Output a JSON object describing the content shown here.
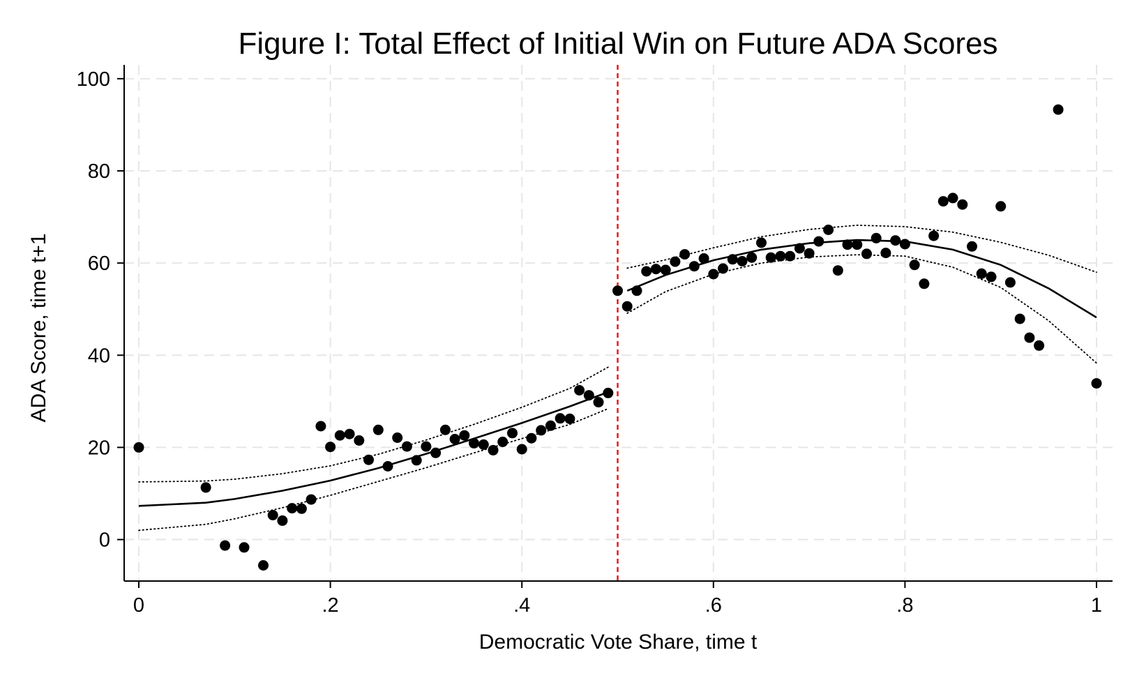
{
  "chart_data": {
    "type": "scatter",
    "title": "Figure I: Total Effect of Initial Win on Future ADA Scores",
    "xlabel": "Democratic Vote Share, time t",
    "ylabel": "ADA Score, time t+1",
    "xlim": [
      0,
      1
    ],
    "ylim": [
      -9,
      103
    ],
    "x_ticks": [
      0,
      0.2,
      0.4,
      0.6,
      0.8,
      1
    ],
    "x_tick_labels": [
      "0",
      ".2",
      ".4",
      ".6",
      ".8",
      "1"
    ],
    "y_ticks": [
      0,
      20,
      40,
      60,
      80,
      100
    ],
    "y_tick_labels": [
      "0",
      "20",
      "40",
      "60",
      "80",
      "100"
    ],
    "grid": true,
    "threshold": 0.5,
    "points": [
      [
        0.0,
        20.0
      ],
      [
        0.07,
        11.3
      ],
      [
        0.09,
        -1.3
      ],
      [
        0.11,
        -1.7
      ],
      [
        0.13,
        -5.6
      ],
      [
        0.14,
        5.3
      ],
      [
        0.15,
        4.1
      ],
      [
        0.16,
        6.8
      ],
      [
        0.17,
        6.7
      ],
      [
        0.18,
        8.7
      ],
      [
        0.19,
        24.6
      ],
      [
        0.2,
        20.1
      ],
      [
        0.21,
        22.6
      ],
      [
        0.22,
        22.9
      ],
      [
        0.23,
        21.5
      ],
      [
        0.24,
        17.3
      ],
      [
        0.25,
        23.8
      ],
      [
        0.26,
        15.9
      ],
      [
        0.27,
        22.1
      ],
      [
        0.28,
        20.2
      ],
      [
        0.29,
        17.2
      ],
      [
        0.3,
        20.2
      ],
      [
        0.31,
        18.8
      ],
      [
        0.32,
        23.8
      ],
      [
        0.33,
        21.8
      ],
      [
        0.34,
        22.6
      ],
      [
        0.35,
        20.9
      ],
      [
        0.36,
        20.6
      ],
      [
        0.37,
        19.4
      ],
      [
        0.38,
        21.2
      ],
      [
        0.39,
        23.1
      ],
      [
        0.4,
        19.6
      ],
      [
        0.41,
        22.0
      ],
      [
        0.42,
        23.7
      ],
      [
        0.43,
        24.7
      ],
      [
        0.44,
        26.3
      ],
      [
        0.45,
        26.2
      ],
      [
        0.46,
        32.4
      ],
      [
        0.47,
        31.3
      ],
      [
        0.48,
        29.8
      ],
      [
        0.49,
        31.8
      ],
      [
        0.5,
        54.0
      ],
      [
        0.51,
        50.6
      ],
      [
        0.52,
        54.0
      ],
      [
        0.53,
        58.2
      ],
      [
        0.54,
        58.7
      ],
      [
        0.55,
        58.5
      ],
      [
        0.56,
        60.3
      ],
      [
        0.57,
        61.9
      ],
      [
        0.58,
        59.3
      ],
      [
        0.59,
        61.0
      ],
      [
        0.6,
        57.6
      ],
      [
        0.61,
        58.8
      ],
      [
        0.62,
        60.8
      ],
      [
        0.63,
        60.4
      ],
      [
        0.64,
        61.2
      ],
      [
        0.65,
        64.4
      ],
      [
        0.66,
        61.2
      ],
      [
        0.67,
        61.5
      ],
      [
        0.68,
        61.5
      ],
      [
        0.69,
        63.2
      ],
      [
        0.7,
        62.1
      ],
      [
        0.71,
        64.7
      ],
      [
        0.72,
        67.2
      ],
      [
        0.73,
        58.4
      ],
      [
        0.74,
        64.0
      ],
      [
        0.75,
        64.0
      ],
      [
        0.76,
        62.0
      ],
      [
        0.77,
        65.4
      ],
      [
        0.78,
        62.2
      ],
      [
        0.79,
        64.9
      ],
      [
        0.8,
        64.1
      ],
      [
        0.81,
        59.6
      ],
      [
        0.82,
        55.5
      ],
      [
        0.83,
        65.9
      ],
      [
        0.84,
        73.4
      ],
      [
        0.85,
        74.1
      ],
      [
        0.86,
        72.7
      ],
      [
        0.87,
        63.6
      ],
      [
        0.88,
        57.7
      ],
      [
        0.89,
        57.0
      ],
      [
        0.9,
        72.3
      ],
      [
        0.91,
        55.8
      ],
      [
        0.92,
        47.9
      ],
      [
        0.93,
        43.8
      ],
      [
        0.94,
        42.1
      ],
      [
        0.96,
        93.3
      ],
      [
        1.0,
        33.9
      ]
    ],
    "fit_left": [
      [
        0.0,
        7.3
      ],
      [
        0.07,
        8.0
      ],
      [
        0.1,
        8.8
      ],
      [
        0.15,
        10.6
      ],
      [
        0.2,
        12.8
      ],
      [
        0.25,
        15.5
      ],
      [
        0.3,
        18.6
      ],
      [
        0.35,
        21.9
      ],
      [
        0.4,
        25.3
      ],
      [
        0.45,
        28.9
      ],
      [
        0.49,
        32.0
      ]
    ],
    "ci_left_upper": [
      [
        0.0,
        12.5
      ],
      [
        0.07,
        12.7
      ],
      [
        0.1,
        13.1
      ],
      [
        0.15,
        14.3
      ],
      [
        0.2,
        16.0
      ],
      [
        0.25,
        18.5
      ],
      [
        0.3,
        21.6
      ],
      [
        0.35,
        25.0
      ],
      [
        0.4,
        28.7
      ],
      [
        0.45,
        32.8
      ],
      [
        0.49,
        37.4
      ]
    ],
    "ci_left_lower": [
      [
        0.0,
        2.0
      ],
      [
        0.07,
        3.3
      ],
      [
        0.1,
        4.5
      ],
      [
        0.15,
        6.9
      ],
      [
        0.2,
        9.6
      ],
      [
        0.25,
        12.6
      ],
      [
        0.3,
        15.6
      ],
      [
        0.35,
        18.8
      ],
      [
        0.4,
        21.9
      ],
      [
        0.45,
        25.0
      ],
      [
        0.49,
        28.4
      ]
    ],
    "fit_right": [
      [
        0.51,
        54.0
      ],
      [
        0.55,
        57.4
      ],
      [
        0.6,
        60.6
      ],
      [
        0.65,
        62.9
      ],
      [
        0.7,
        64.3
      ],
      [
        0.75,
        65.0
      ],
      [
        0.8,
        64.7
      ],
      [
        0.85,
        62.9
      ],
      [
        0.9,
        59.6
      ],
      [
        0.95,
        54.5
      ],
      [
        1.0,
        48.2
      ]
    ],
    "ci_right_upper": [
      [
        0.51,
        58.9
      ],
      [
        0.55,
        60.7
      ],
      [
        0.6,
        63.3
      ],
      [
        0.65,
        65.7
      ],
      [
        0.7,
        67.3
      ],
      [
        0.75,
        68.2
      ],
      [
        0.8,
        67.9
      ],
      [
        0.85,
        66.7
      ],
      [
        0.9,
        64.5
      ],
      [
        0.95,
        61.7
      ],
      [
        1.0,
        58.0
      ]
    ],
    "ci_right_lower": [
      [
        0.51,
        49.1
      ],
      [
        0.55,
        53.8
      ],
      [
        0.6,
        57.6
      ],
      [
        0.65,
        60.0
      ],
      [
        0.7,
        61.3
      ],
      [
        0.75,
        61.8
      ],
      [
        0.8,
        61.5
      ],
      [
        0.85,
        59.1
      ],
      [
        0.9,
        54.7
      ],
      [
        0.95,
        47.5
      ],
      [
        1.0,
        38.3
      ]
    ],
    "colors": {
      "points": "#000000",
      "fit": "#000000",
      "threshold_line": "#e41a1c",
      "grid": "#e6e6e6"
    }
  }
}
